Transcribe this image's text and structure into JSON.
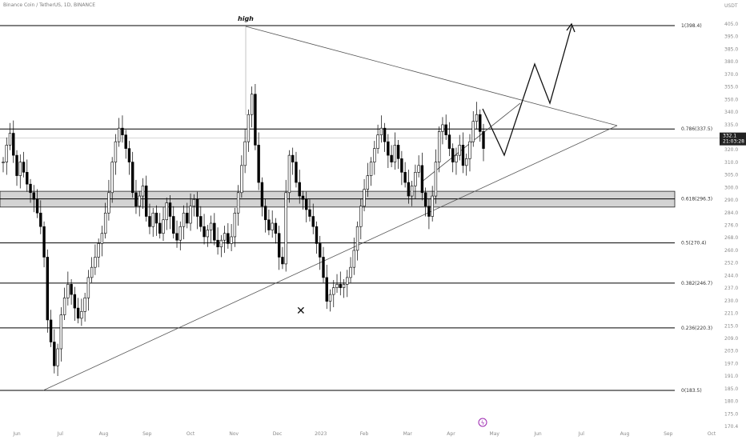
{
  "header": {
    "symbol": "Binance Coin / TetherUS, 1D, BINANCE",
    "currency": "USDT"
  },
  "price_tag": {
    "price": "332.1",
    "countdown": "21:03:28"
  },
  "colors": {
    "candle": "#000000",
    "levels": "#000000",
    "zone": "#d3d3d3",
    "lightning": "#9c27b0"
  },
  "chart_data": {
    "type": "candlestick",
    "ylim": [
      165,
      412
    ],
    "y_ticks": [
      "405.0",
      "395.0",
      "385.0",
      "380.0",
      "370.0",
      "355.0",
      "350.0",
      "340.0",
      "335.0",
      "325.0",
      "320.0",
      "310.0",
      "305.0",
      "300.0",
      "290.0",
      "284.0",
      "276.0",
      "268.0",
      "260.0",
      "252.0",
      "244.0",
      "237.0",
      "230.0",
      "221.0",
      "215.0",
      "209.0",
      "203.0",
      "197.0",
      "191.0",
      "185.0",
      "180.0",
      "175.0",
      "170.4"
    ],
    "x_ticks": [
      "Jun",
      "Jul",
      "Aug",
      "Sep",
      "Oct",
      "Nov",
      "Dec",
      "2023",
      "Feb",
      "Mar",
      "Apr",
      "May",
      "Jun",
      "Jul",
      "Aug",
      "Sep",
      "Oct"
    ],
    "fib_levels": [
      {
        "label": "1(398.4)",
        "value": 398.4
      },
      {
        "label": "0.786(337.5)",
        "value": 337.5
      },
      {
        "label": "0.618(296.3)",
        "value": 296.3
      },
      {
        "label": "0.5(270.4)",
        "value": 270.4
      },
      {
        "label": "0.382(246.7)",
        "value": 246.7
      },
      {
        "label": "0.236(220.3)",
        "value": 220.3
      },
      {
        "label": "0(183.5)",
        "value": 183.5
      }
    ],
    "zone": {
      "from": 291.5,
      "to": 300.8
    },
    "high_label": "high",
    "last_price": 332.1,
    "marker": "✕",
    "series_close": [
      318,
      328,
      335,
      322,
      310,
      318,
      312,
      305,
      300,
      296,
      288,
      280,
      262,
      225,
      212,
      198,
      208,
      228,
      238,
      246,
      240,
      232,
      226,
      230,
      238,
      250,
      256,
      262,
      270,
      276,
      288,
      300,
      318,
      330,
      338,
      334,
      326,
      318,
      300,
      292,
      298,
      304,
      286,
      280,
      288,
      282,
      276,
      284,
      294,
      286,
      276,
      272,
      280,
      288,
      282,
      292,
      296,
      286,
      280,
      274,
      278,
      282,
      272,
      268,
      272,
      276,
      270,
      274,
      288,
      300,
      316,
      330,
      346,
      358,
      328,
      306,
      292,
      284,
      278,
      282,
      276,
      262,
      258,
      300,
      322,
      318,
      306,
      298,
      296,
      290,
      286,
      280,
      270,
      262,
      250,
      236,
      240,
      244,
      246,
      244,
      246,
      250,
      256,
      266,
      280,
      292,
      302,
      310,
      318,
      326,
      334,
      338,
      330,
      322,
      318,
      328,
      320,
      312,
      306,
      298,
      304,
      312,
      316,
      300,
      292,
      286,
      298,
      318,
      336,
      340,
      334,
      326,
      318,
      322,
      328,
      316,
      320,
      330,
      342,
      346,
      336,
      326
    ]
  }
}
